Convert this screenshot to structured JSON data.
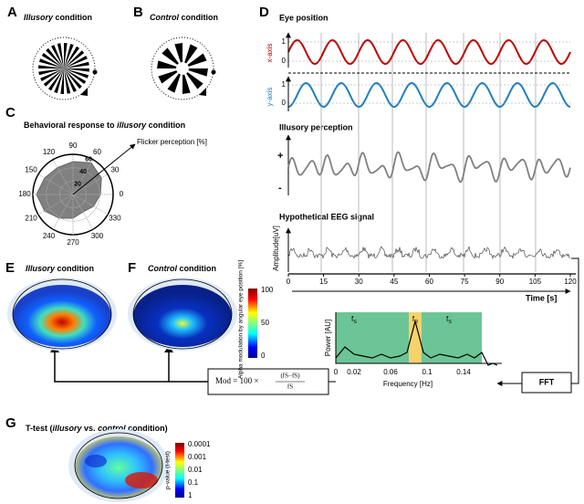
{
  "panel_a": {
    "letter": "A",
    "title_em": "Illusory",
    "title_rest": "condition"
  },
  "panel_b": {
    "letter": "B",
    "title_em": "Control",
    "title_rest": "condition"
  },
  "panel_c": {
    "letter": "C",
    "title": "Behavioral response to",
    "title_em": "illusory",
    "title_rest": "condition",
    "arrow_label": "Flicker perception [%]",
    "angles": [
      "0",
      "30",
      "60",
      "90",
      "120",
      "150",
      "180",
      "210",
      "240",
      "270",
      "300",
      "330"
    ],
    "radii": [
      "20",
      "40",
      "60"
    ]
  },
  "panel_d": {
    "letter": "D",
    "eye_title": "Eye position",
    "x_axis_label": "x-axis",
    "y_axis_label": "y-axis",
    "eye_ticks": [
      "1",
      "0"
    ],
    "illusory_title": "Illusory perception",
    "plus": "+",
    "minus": "-",
    "eeg_title": "Hypothetical EEG signal",
    "eeg_ylabel": "Amplitude[uV]",
    "time_ticks": [
      "0",
      "15",
      "30",
      "45",
      "60",
      "75",
      "90",
      "105",
      "120"
    ],
    "time_label": "Time [s]"
  },
  "fft": {
    "label": "FFT",
    "ylabel": "Power [AU]",
    "xlabel": "Frequency [Hz]",
    "xticks": [
      "0",
      "0.02",
      "0.06",
      "0.1",
      "0.14"
    ],
    "bands": [
      {
        "main": "f",
        "sub": "S"
      },
      {
        "main": "f",
        "sub": "R"
      },
      {
        "main": "f",
        "sub": "S"
      }
    ]
  },
  "formula": {
    "lhs": "Mod = 100 ×",
    "numerator": "(fS−fS)",
    "denominator": "fS"
  },
  "panel_e": {
    "letter": "E",
    "title_em": "Illusory",
    "title_rest": "condition"
  },
  "panel_f": {
    "letter": "F",
    "title_em": "Control",
    "title_rest": "condition",
    "colorbar_label": "Alpha modulation by angular eye position [%]",
    "colorbar_ticks": [
      "100",
      "50",
      "0"
    ]
  },
  "panel_g": {
    "letter": "G",
    "title_pre": "T-test (",
    "title_em1": "illusory",
    "title_mid": "vs.",
    "title_em2": "control",
    "title_post": "condition)",
    "colorbar_label": "p-value (t-test)",
    "colorbar_ticks": [
      "0.0001",
      "0.001",
      "0.01",
      "0.1",
      "1"
    ]
  }
}
